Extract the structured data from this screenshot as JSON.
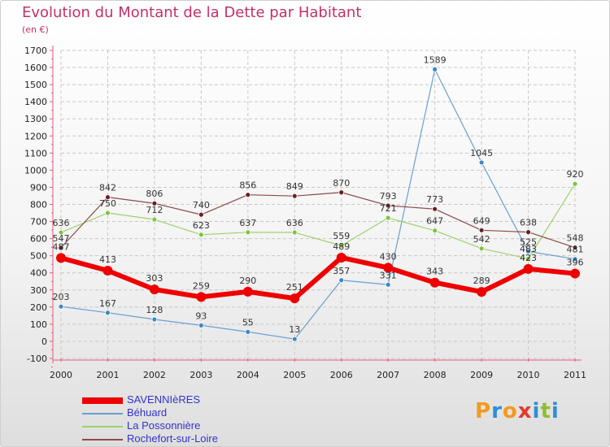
{
  "header": {
    "title": "Evolution du Montant de la Dette par Habitant",
    "subtitle": "(en €)"
  },
  "logo": {
    "text": "Proxiti",
    "colors": [
      "#f39a1c",
      "#2e8fd6",
      "#f39a1c",
      "#e23b2e",
      "#2e8fd6",
      "#8dbf2f",
      "#2e8fd6"
    ]
  },
  "chart_data": {
    "type": "line",
    "categories": [
      "2000",
      "2001",
      "2002",
      "2003",
      "2004",
      "2005",
      "2006",
      "2007",
      "2008",
      "2009",
      "2010",
      "2011"
    ],
    "ylim": [
      -100,
      1700
    ],
    "yticks": [
      -100,
      0,
      100,
      200,
      300,
      400,
      500,
      600,
      700,
      800,
      900,
      1000,
      1100,
      1200,
      1300,
      1400,
      1500,
      1600,
      1700
    ],
    "grid": true,
    "legend_position": "bottom-left",
    "series": [
      {
        "name": "Béhuard",
        "color": "#6a9fd1",
        "marker": "#3c87c8",
        "width": 1.2,
        "r": 3,
        "values": [
          203,
          167,
          128,
          93,
          55,
          13,
          357,
          331,
          1589,
          1045,
          525,
          481
        ],
        "labels": [
          "203",
          "167",
          "128",
          "93",
          "55",
          "13",
          "357",
          "331",
          "1589",
          "1045",
          "525",
          "481"
        ]
      },
      {
        "name": "La Possonnière",
        "color": "#9ad36a",
        "marker": "#7dc43e",
        "width": 1.2,
        "r": 3,
        "values": [
          636,
          750,
          712,
          623,
          637,
          636,
          559,
          721,
          647,
          542,
          483,
          920
        ],
        "labels": [
          "636",
          "750",
          "712",
          "623",
          "637",
          "636",
          "559",
          "721",
          "647",
          "542",
          "483",
          "920"
        ]
      },
      {
        "name": "Rochefort-sur-Loire",
        "color": "#8b4a4a",
        "marker": "#6b1f1f",
        "width": 1.2,
        "r": 3,
        "values": [
          547,
          842,
          806,
          740,
          856,
          849,
          870,
          793,
          773,
          649,
          638,
          548
        ],
        "labels": [
          "547",
          "842",
          "806",
          "740",
          "856",
          "849",
          "870",
          "793",
          "773",
          "649",
          "638",
          "548"
        ]
      },
      {
        "name": "SAVENNIèRES",
        "color": "#ee0000",
        "marker": "#ee0000",
        "width": 6,
        "r": 6,
        "values": [
          487,
          413,
          303,
          259,
          290,
          251,
          489,
          430,
          343,
          289,
          423,
          396
        ],
        "labels": [
          "487",
          "413",
          "303",
          "259",
          "290",
          "251",
          "489",
          "430",
          "343",
          "289",
          "423",
          "396"
        ]
      }
    ],
    "legend_order": [
      "SAVENNIèRES",
      "Béhuard",
      "La Possonnière",
      "Rochefort-sur-Loire"
    ]
  }
}
